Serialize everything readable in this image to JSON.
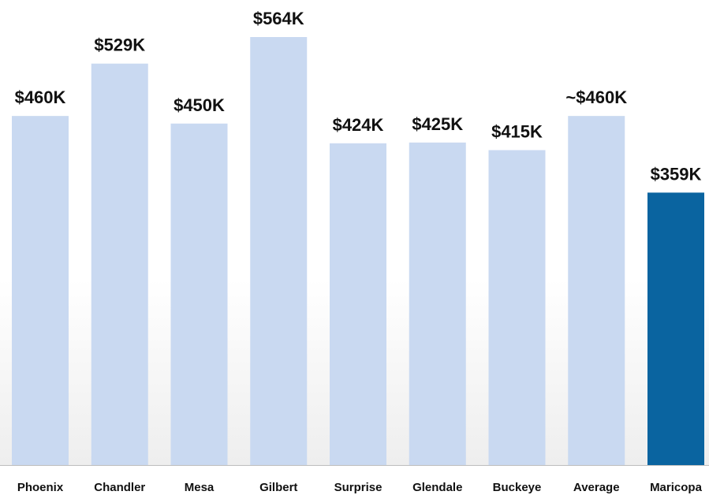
{
  "chart_data": {
    "type": "bar",
    "categories": [
      "Phoenix",
      "Chandler",
      "Mesa",
      "Gilbert",
      "Surprise",
      "Glendale",
      "Buckeye",
      "Average",
      "Maricopa"
    ],
    "values": [
      460,
      529,
      450,
      564,
      424,
      425,
      415,
      460,
      359
    ],
    "value_labels": [
      "$460K",
      "$529K",
      "$450K",
      "$564K",
      "$424K",
      "$425K",
      "$415K",
      "~$460K",
      "$359K"
    ],
    "colors": [
      "#c9d9f1",
      "#c9d9f1",
      "#c9d9f1",
      "#c9d9f1",
      "#c9d9f1",
      "#c9d9f1",
      "#c9d9f1",
      "#c9d9f1",
      "#0a64a0"
    ]
  }
}
